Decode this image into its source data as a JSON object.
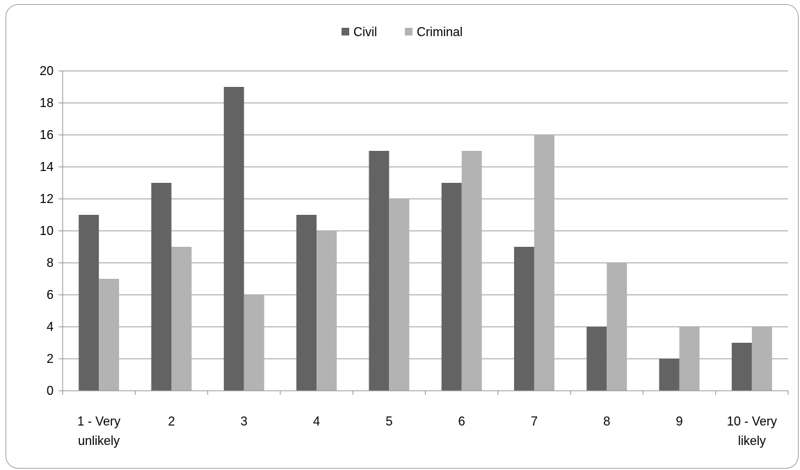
{
  "chart_data": {
    "type": "bar",
    "categories": [
      [
        "1 - Very",
        "unlikely"
      ],
      [
        "2"
      ],
      [
        "3"
      ],
      [
        "4"
      ],
      [
        "5"
      ],
      [
        "6"
      ],
      [
        "7"
      ],
      [
        "8"
      ],
      [
        "9"
      ],
      [
        "10 - Very",
        "likely"
      ]
    ],
    "series": [
      {
        "name": "Civil",
        "color": "#636363",
        "values": [
          11,
          13,
          19,
          11,
          15,
          13,
          9,
          4,
          2,
          3
        ]
      },
      {
        "name": "Criminal",
        "color": "#b3b3b3",
        "values": [
          7,
          9,
          6,
          10,
          12,
          15,
          16,
          8,
          4,
          4
        ]
      }
    ],
    "ylim": [
      0,
      20
    ],
    "yticks": [
      0,
      2,
      4,
      6,
      8,
      10,
      12,
      14,
      16,
      18,
      20
    ],
    "grid": true,
    "legend_position": "top"
  }
}
